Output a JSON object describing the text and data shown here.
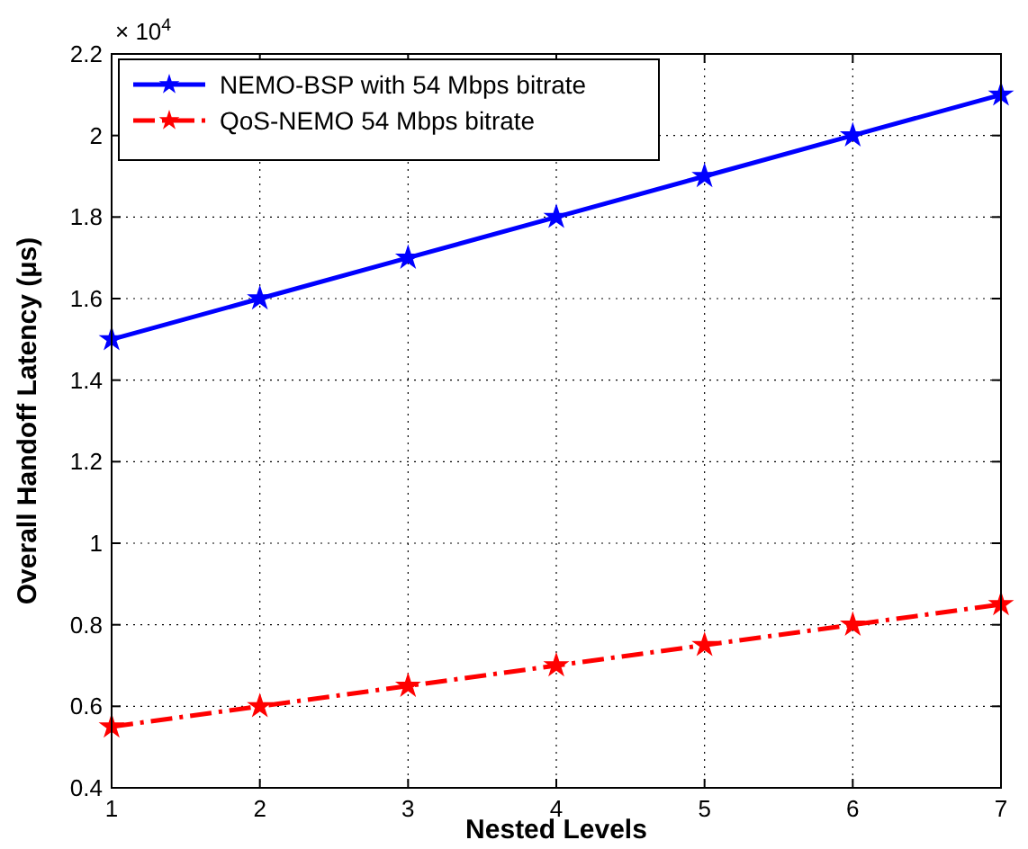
{
  "chart_data": {
    "type": "line",
    "xlabel": "Nested Levels",
    "ylabel": "Overall Handoff Latency (μs)",
    "x": [
      1,
      2,
      3,
      4,
      5,
      6,
      7
    ],
    "series": [
      {
        "name": "NEMO-BSP with 54 Mbps bitrate",
        "color": "#0000ff",
        "line_style": "solid",
        "values": [
          1.5,
          1.6,
          1.7,
          1.8,
          1.9,
          2.0,
          2.1
        ]
      },
      {
        "name": "QoS-NEMO 54 Mbps bitrate",
        "color": "#ff0000",
        "line_style": "dashed",
        "values": [
          0.55,
          0.6,
          0.65,
          0.7,
          0.75,
          0.8,
          0.85
        ]
      }
    ],
    "xlim": [
      1,
      7
    ],
    "xticks": [
      1,
      2,
      3,
      4,
      5,
      6,
      7
    ],
    "ylim": [
      0.4,
      2.2
    ],
    "yticks": [
      0.4,
      0.6,
      0.8,
      1,
      1.2,
      1.4,
      1.6,
      1.8,
      2,
      2.2
    ],
    "annotations": [
      "× 10$^{4}$"
    ],
    "grid": true,
    "legend": "top left",
    "marker": "star"
  }
}
